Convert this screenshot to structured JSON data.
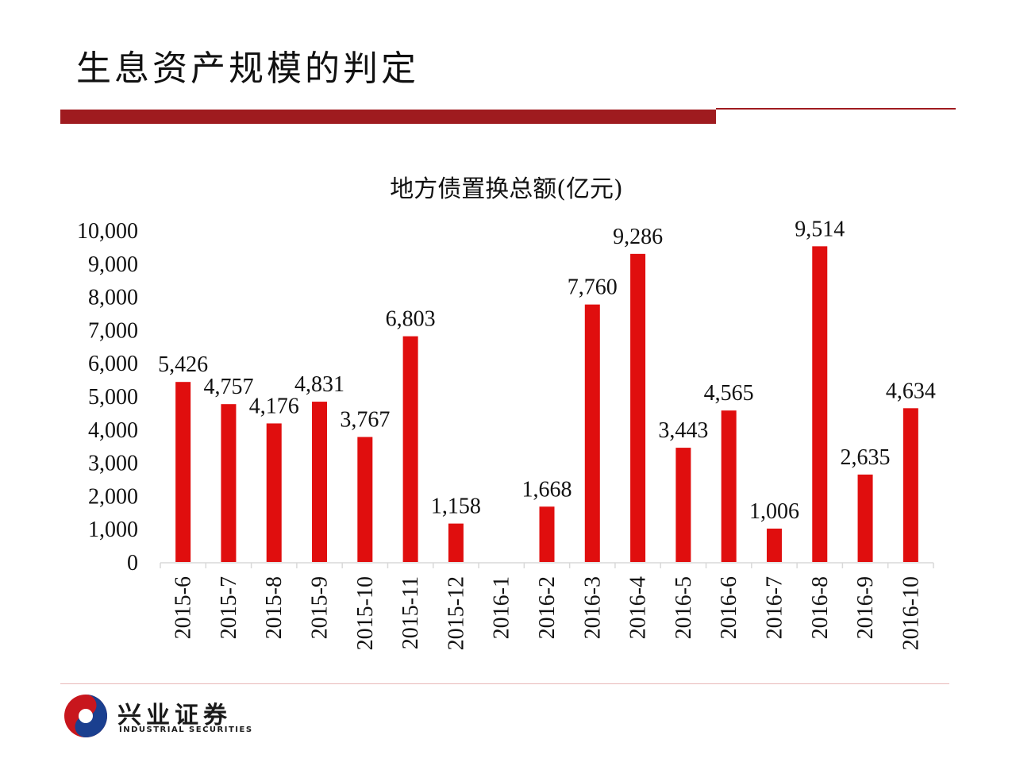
{
  "slide": {
    "title": "生息资产规模的判定"
  },
  "colors": {
    "bar": "#e00e0e",
    "title_bar": "#9f1b1f",
    "logo_red": "#c8161d",
    "logo_blue": "#1a3f8f"
  },
  "chart_data": {
    "type": "bar",
    "title": "地方债置换总额(亿元)",
    "xlabel": "",
    "ylabel": "",
    "ylim": [
      0,
      10000
    ],
    "yticks": [
      0,
      1000,
      2000,
      3000,
      4000,
      5000,
      6000,
      7000,
      8000,
      9000,
      10000
    ],
    "ytick_labels": [
      "0",
      "1,000",
      "2,000",
      "3,000",
      "4,000",
      "5,000",
      "6,000",
      "7,000",
      "8,000",
      "9,000",
      "10,000"
    ],
    "categories": [
      "2015-6",
      "2015-7",
      "2015-8",
      "2015-9",
      "2015-10",
      "2015-11",
      "2015-12",
      "2016-1",
      "2016-2",
      "2016-3",
      "2016-4",
      "2016-5",
      "2016-6",
      "2016-7",
      "2016-8",
      "2016-9",
      "2016-10"
    ],
    "values": [
      5426,
      4757,
      4176,
      4831,
      3767,
      6803,
      1158,
      null,
      1668,
      7760,
      9286,
      3443,
      4565,
      1006,
      9514,
      2635,
      4634
    ],
    "value_labels": [
      "5,426",
      "4,757",
      "4,176",
      "4,831",
      "3,767",
      "6,803",
      "1,158",
      "",
      "1,668",
      "7,760",
      "9,286",
      "3,443",
      "4,565",
      "1,006",
      "9,514",
      "2,635",
      "4,634"
    ],
    "grid": false,
    "legend": "none"
  },
  "footer": {
    "logo_cn": "兴业证券",
    "logo_en": "INDUSTRIAL SECURITIES"
  }
}
